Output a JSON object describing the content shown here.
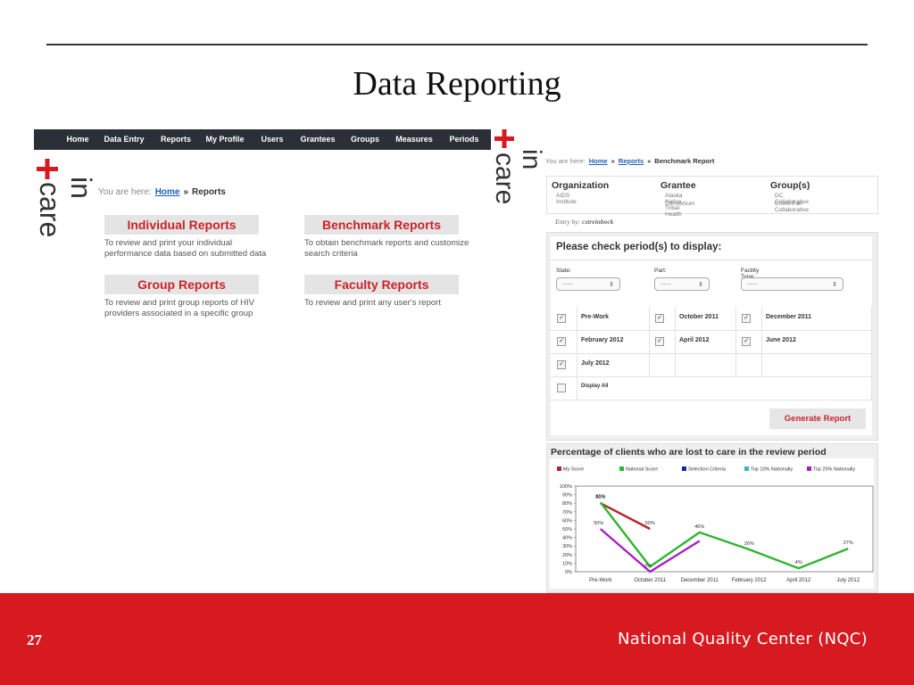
{
  "slide": {
    "title": "Data Reporting",
    "page_number": "27",
    "footer": "National Quality Center (NQC)"
  },
  "left_screen": {
    "nav": [
      "Home",
      "Data Entry",
      "Reports",
      "My Profile",
      "Users",
      "Grantees",
      "Groups",
      "Measures",
      "Periods"
    ],
    "logo": {
      "top": "in",
      "bottom": "care"
    },
    "breadcrumb": {
      "prefix": "You are here:",
      "links": [
        "Home"
      ],
      "separator": "»",
      "current": "Reports"
    },
    "sections": [
      {
        "title": "Individual Reports",
        "text": "To review and print your individual performance data based on submitted data"
      },
      {
        "title": "Benchmark Reports",
        "text": "To obtain benchmark reports and customize search criteria"
      },
      {
        "title": "Group Reports",
        "text": "To review and print group reports of HIV providers associated in a specific group"
      },
      {
        "title": "Faculty Reports",
        "text": "To review and print any user's report"
      }
    ]
  },
  "right_screen": {
    "logo": {
      "top": "in",
      "bottom": "care"
    },
    "breadcrumb": {
      "prefix": "You are here:",
      "links": [
        "Home",
        "Reports"
      ],
      "separator": "»",
      "current": "Benchmark Report"
    },
    "info": [
      {
        "label": "Organization",
        "lines": [
          "AIDS Institute"
        ]
      },
      {
        "label": "Grantee",
        "lines": [
          "Alaska Native Tribal Health",
          "Consortium"
        ]
      },
      {
        "label": "Group(s)",
        "lines": [
          "DC Collaborative",
          "Cross-Part Collaborative"
        ]
      }
    ],
    "entry_by": {
      "label": "Entry by:",
      "user": "cstreinbock"
    },
    "periods": {
      "heading": "Please check period(s) to display:",
      "filters": [
        {
          "label": "State:",
          "value": "------"
        },
        {
          "label": "Part:",
          "value": "------"
        },
        {
          "label": "Facility Type:",
          "value": "------"
        }
      ],
      "options": [
        {
          "label": "Pre-Work",
          "checked": true
        },
        {
          "label": "October 2011",
          "checked": true
        },
        {
          "label": "December 2011",
          "checked": true
        },
        {
          "label": "February 2012",
          "checked": true
        },
        {
          "label": "April 2012",
          "checked": true
        },
        {
          "label": "June 2012",
          "checked": true
        },
        {
          "label": "July 2012",
          "checked": true
        }
      ],
      "display_all": {
        "label": "Display All",
        "checked": false
      },
      "button": "Generate Report"
    }
  },
  "chart_data": {
    "type": "line",
    "title": "Percentage of clients who are lost to care in the review period",
    "categories": [
      "Pre-Work",
      "October 2011",
      "December 2011",
      "February 2012",
      "April 2012",
      "July 2012"
    ],
    "series": [
      {
        "name": "My Score",
        "color": "#b3262b",
        "values": [
          80,
          50,
          null,
          null,
          null,
          null
        ],
        "value_labels": [
          "80%",
          "50%",
          null,
          null,
          null,
          null
        ]
      },
      {
        "name": "National Score",
        "color": "#2fb52f",
        "values": [
          81,
          6,
          46,
          26,
          4,
          27
        ],
        "value_labels": [
          "81%",
          null,
          "46%",
          "26%",
          "4%",
          "27%"
        ]
      },
      {
        "name": "Selection Criteria",
        "color": "#1d2b8f",
        "values": [
          null,
          null,
          null,
          null,
          null,
          null
        ]
      },
      {
        "name": "Top 10% Nationally",
        "color": "#3db2c9",
        "values": [
          null,
          null,
          null,
          null,
          null,
          null
        ]
      },
      {
        "name": "Top 25% Nationally",
        "color": "#a323c2",
        "values": [
          50,
          0,
          36,
          null,
          null,
          null
        ],
        "value_labels": [
          "50%",
          "0%",
          null,
          null,
          null,
          null
        ]
      }
    ],
    "ylim": [
      0,
      100
    ],
    "yticks": [
      {
        "value": 0,
        "label": "0%"
      },
      {
        "value": 10,
        "label": "10%"
      },
      {
        "value": 20,
        "label": "20%"
      },
      {
        "value": 30,
        "label": "30%"
      },
      {
        "value": 40,
        "label": "40%"
      },
      {
        "value": 50,
        "label": "50%"
      },
      {
        "value": 60,
        "label": "60%"
      },
      {
        "value": 70,
        "label": "70%"
      },
      {
        "value": 80,
        "label": "80%"
      },
      {
        "value": 90,
        "label": "90%"
      },
      {
        "value": 100,
        "label": "100%"
      }
    ],
    "grid": false,
    "legend": "top"
  }
}
